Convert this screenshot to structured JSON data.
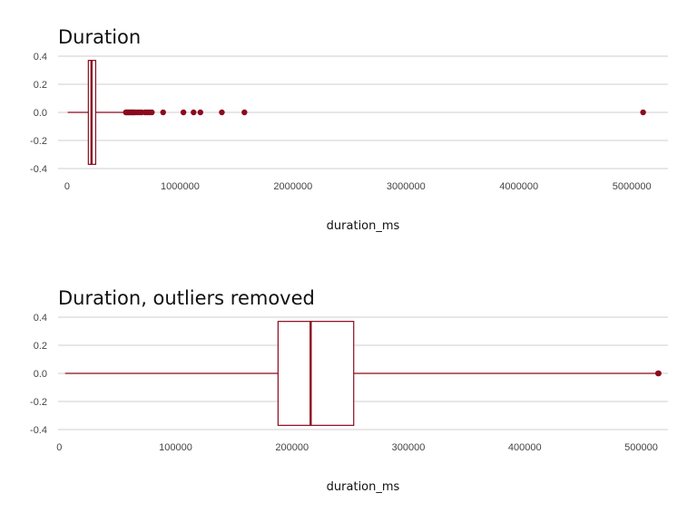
{
  "chart_data": [
    {
      "type": "boxplot",
      "title": "Duration",
      "xlabel": "duration_ms",
      "ylabel": "",
      "xlim": [
        -80000,
        5320000
      ],
      "ylim": [
        -0.4,
        0.4
      ],
      "grid": true,
      "legend": "none",
      "color": "#8B0A1E",
      "x_ticks": [
        0,
        1000000,
        2000000,
        3000000,
        4000000,
        5000000
      ],
      "x_tick_labels": [
        "0",
        "1000000",
        "2000000",
        "3000000",
        "4000000",
        "5000000"
      ],
      "y_ticks": [
        0.4,
        0.2,
        0.0,
        -0.2,
        -0.4
      ],
      "y_tick_labels": [
        "0.4",
        "0.2",
        "0.0",
        "-0.2",
        "-0.4"
      ],
      "box": {
        "whisker_low": 5000,
        "q1": 188000,
        "median": 216000,
        "q3": 253000,
        "whisker_high": 515000,
        "y_low": -0.37,
        "y_high": 0.37
      },
      "outliers": [
        520000,
        530000,
        540000,
        550000,
        560000,
        570000,
        580000,
        590000,
        600000,
        620000,
        640000,
        660000,
        690000,
        710000,
        730000,
        750000,
        850000,
        1030000,
        1120000,
        1180000,
        1370000,
        1570000,
        5100000
      ]
    },
    {
      "type": "boxplot",
      "title": "Duration, outliers removed",
      "xlabel": "duration_ms",
      "ylabel": "",
      "xlim": [
        -1000,
        523000
      ],
      "ylim": [
        -0.4,
        0.4
      ],
      "grid": true,
      "legend": "none",
      "color": "#8B0A1E",
      "x_ticks": [
        0,
        100000,
        200000,
        300000,
        400000,
        500000
      ],
      "x_tick_labels": [
        "0",
        "100000",
        "200000",
        "300000",
        "400000",
        "500000"
      ],
      "y_ticks": [
        0.4,
        0.2,
        0.0,
        -0.2,
        -0.4
      ],
      "y_tick_labels": [
        "0.4",
        "0.2",
        "0.0",
        "-0.2",
        "-0.4"
      ],
      "box": {
        "whisker_low": 5000,
        "q1": 188000,
        "median": 216000,
        "q3": 253000,
        "whisker_high": 515000,
        "y_low": -0.37,
        "y_high": 0.37
      },
      "outliers": [
        514500,
        515000
      ]
    }
  ]
}
